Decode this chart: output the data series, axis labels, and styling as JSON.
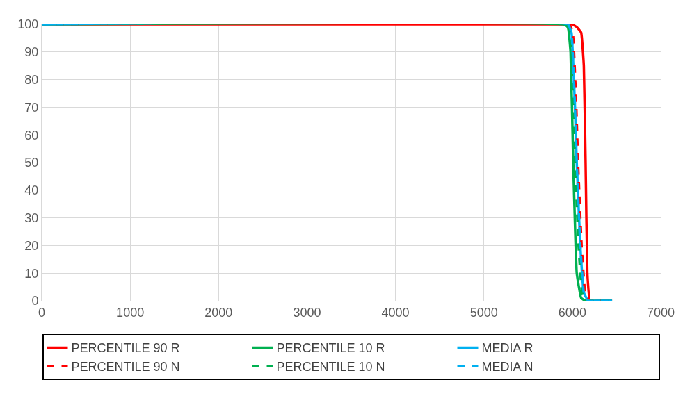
{
  "chart_data": {
    "type": "line",
    "xlim": [
      0,
      7000
    ],
    "ylim": [
      0,
      100
    ],
    "xticks": [
      0,
      1000,
      2000,
      3000,
      4000,
      5000,
      6000,
      7000
    ],
    "yticks": [
      0,
      10,
      20,
      30,
      40,
      50,
      60,
      70,
      80,
      90,
      100
    ],
    "grid": true,
    "legend": "bottom",
    "marker": "none",
    "series": [
      {
        "name": "PERCENTILE 90 R",
        "color": "#ff0000",
        "line_style": "solid",
        "x": [
          0,
          5950,
          6000,
          6050,
          6100,
          6130,
          6150,
          6170,
          6200,
          6300,
          6450
        ],
        "values": [
          100,
          100,
          100,
          99,
          97,
          85,
          50,
          10,
          0,
          0,
          0
        ]
      },
      {
        "name": "PERCENTILE 10 R",
        "color": "#00b050",
        "line_style": "solid",
        "x": [
          0,
          5900,
          5950,
          5980,
          6010,
          6050,
          6100,
          6150,
          6300,
          6450
        ],
        "values": [
          100,
          100,
          99,
          90,
          50,
          10,
          1,
          0,
          0,
          0
        ]
      },
      {
        "name": "MEDIA R",
        "color": "#00b0f0",
        "line_style": "solid",
        "x": [
          0,
          5950,
          5990,
          6030,
          6050,
          6090,
          6130,
          6180,
          6300,
          6450
        ],
        "values": [
          100,
          100,
          97,
          70,
          50,
          20,
          3,
          0,
          0,
          0
        ]
      },
      {
        "name": "PERCENTILE 90 N",
        "color": "#ff0000",
        "line_style": "dashed",
        "x": [
          0,
          5965,
          6005,
          6045,
          6065,
          6105,
          6145,
          6190,
          6300,
          6450
        ],
        "values": [
          100,
          100,
          97,
          70,
          50,
          20,
          3,
          0,
          0,
          0
        ]
      },
      {
        "name": "PERCENTILE 10 N",
        "color": "#00b050",
        "line_style": "dashed",
        "x": [
          0,
          5930,
          5970,
          6010,
          6030,
          6070,
          6110,
          6160,
          6300,
          6450
        ],
        "values": [
          100,
          100,
          97,
          70,
          50,
          20,
          3,
          0,
          0,
          0
        ]
      },
      {
        "name": "MEDIA N",
        "color": "#00b0f0",
        "line_style": "dashed",
        "x": [
          0,
          5950,
          5990,
          6030,
          6050,
          6090,
          6130,
          6180,
          6300,
          6450
        ],
        "values": [
          100,
          100,
          97,
          70,
          50,
          20,
          3,
          0,
          0,
          0
        ]
      }
    ]
  }
}
